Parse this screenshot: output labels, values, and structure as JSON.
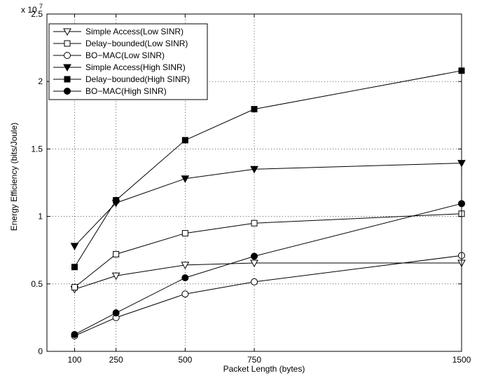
{
  "chart_data": {
    "type": "line",
    "title": "",
    "xlabel": "Packet Length (bytes)",
    "ylabel": "Energy Efficiency (bits/Joule)",
    "y_multiplier_label": "x 10",
    "y_multiplier_exponent": "7",
    "x": [
      100,
      250,
      500,
      750,
      1500
    ],
    "x_tick_labels": [
      "100",
      "250",
      "500",
      "750",
      "1500"
    ],
    "xlim": [
      0,
      1500
    ],
    "ylim": [
      0,
      2.5
    ],
    "y_ticks": [
      0,
      0.5,
      1,
      1.5,
      2,
      2.5
    ],
    "y_tick_labels": [
      "0",
      "0.5",
      "1",
      "1.5",
      "2",
      "2.5"
    ],
    "grid": true,
    "legend_position": "top-left",
    "series": [
      {
        "name": "Simple Access(Low SINR)",
        "marker": "triangle-down-open",
        "values": [
          0.46,
          0.56,
          0.64,
          0.655,
          0.655
        ]
      },
      {
        "name": "Delay−bounded(Low SINR)",
        "marker": "square-open",
        "values": [
          0.475,
          0.72,
          0.875,
          0.95,
          1.02
        ]
      },
      {
        "name": "BO−MAC(Low SINR)",
        "marker": "circle-open",
        "values": [
          0.115,
          0.25,
          0.425,
          0.515,
          0.71
        ]
      },
      {
        "name": "Simple Access(High SINR)",
        "marker": "triangle-down-filled",
        "values": [
          0.78,
          1.1,
          1.28,
          1.35,
          1.395
        ]
      },
      {
        "name": "Delay−bounded(High SINR)",
        "marker": "square-filled",
        "values": [
          0.625,
          1.12,
          1.565,
          1.795,
          2.08
        ]
      },
      {
        "name": "BO−MAC(High SINR)",
        "marker": "circle-filled",
        "values": [
          0.125,
          0.285,
          0.545,
          0.705,
          1.095
        ]
      }
    ]
  }
}
